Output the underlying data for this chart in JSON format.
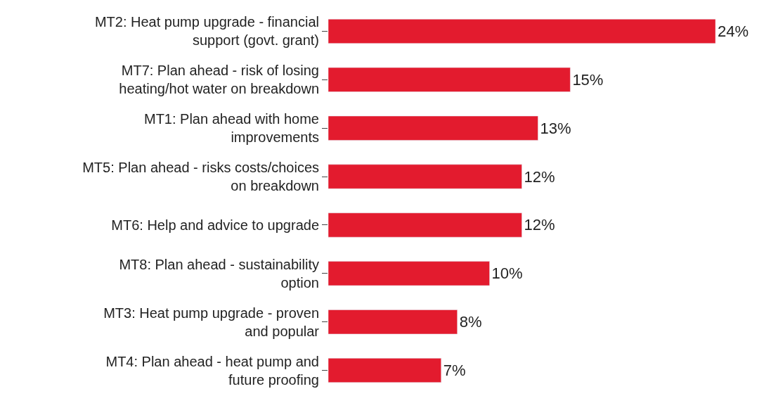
{
  "chart_data": {
    "type": "bar",
    "orientation": "horizontal",
    "categories": [
      "MT2: Heat pump upgrade - financial\nsupport (govt. grant)",
      "MT7: Plan ahead - risk of losing\nheating/hot water on breakdown",
      "MT1: Plan ahead with home\nimprovements",
      "MT5: Plan ahead - risks costs/choices\non breakdown",
      "MT6: Help and advice to upgrade",
      "MT8: Plan ahead - sustainability\noption",
      "MT3: Heat pump upgrade - proven\nand popular",
      "MT4: Plan ahead - heat pump and\nfuture proofing"
    ],
    "values": [
      24,
      15,
      13,
      12,
      12,
      10,
      8,
      7
    ],
    "value_labels": [
      "24%",
      "15%",
      "13%",
      "12%",
      "12%",
      "10%",
      "8%",
      "7%"
    ],
    "color": "#e31b2e"
  }
}
